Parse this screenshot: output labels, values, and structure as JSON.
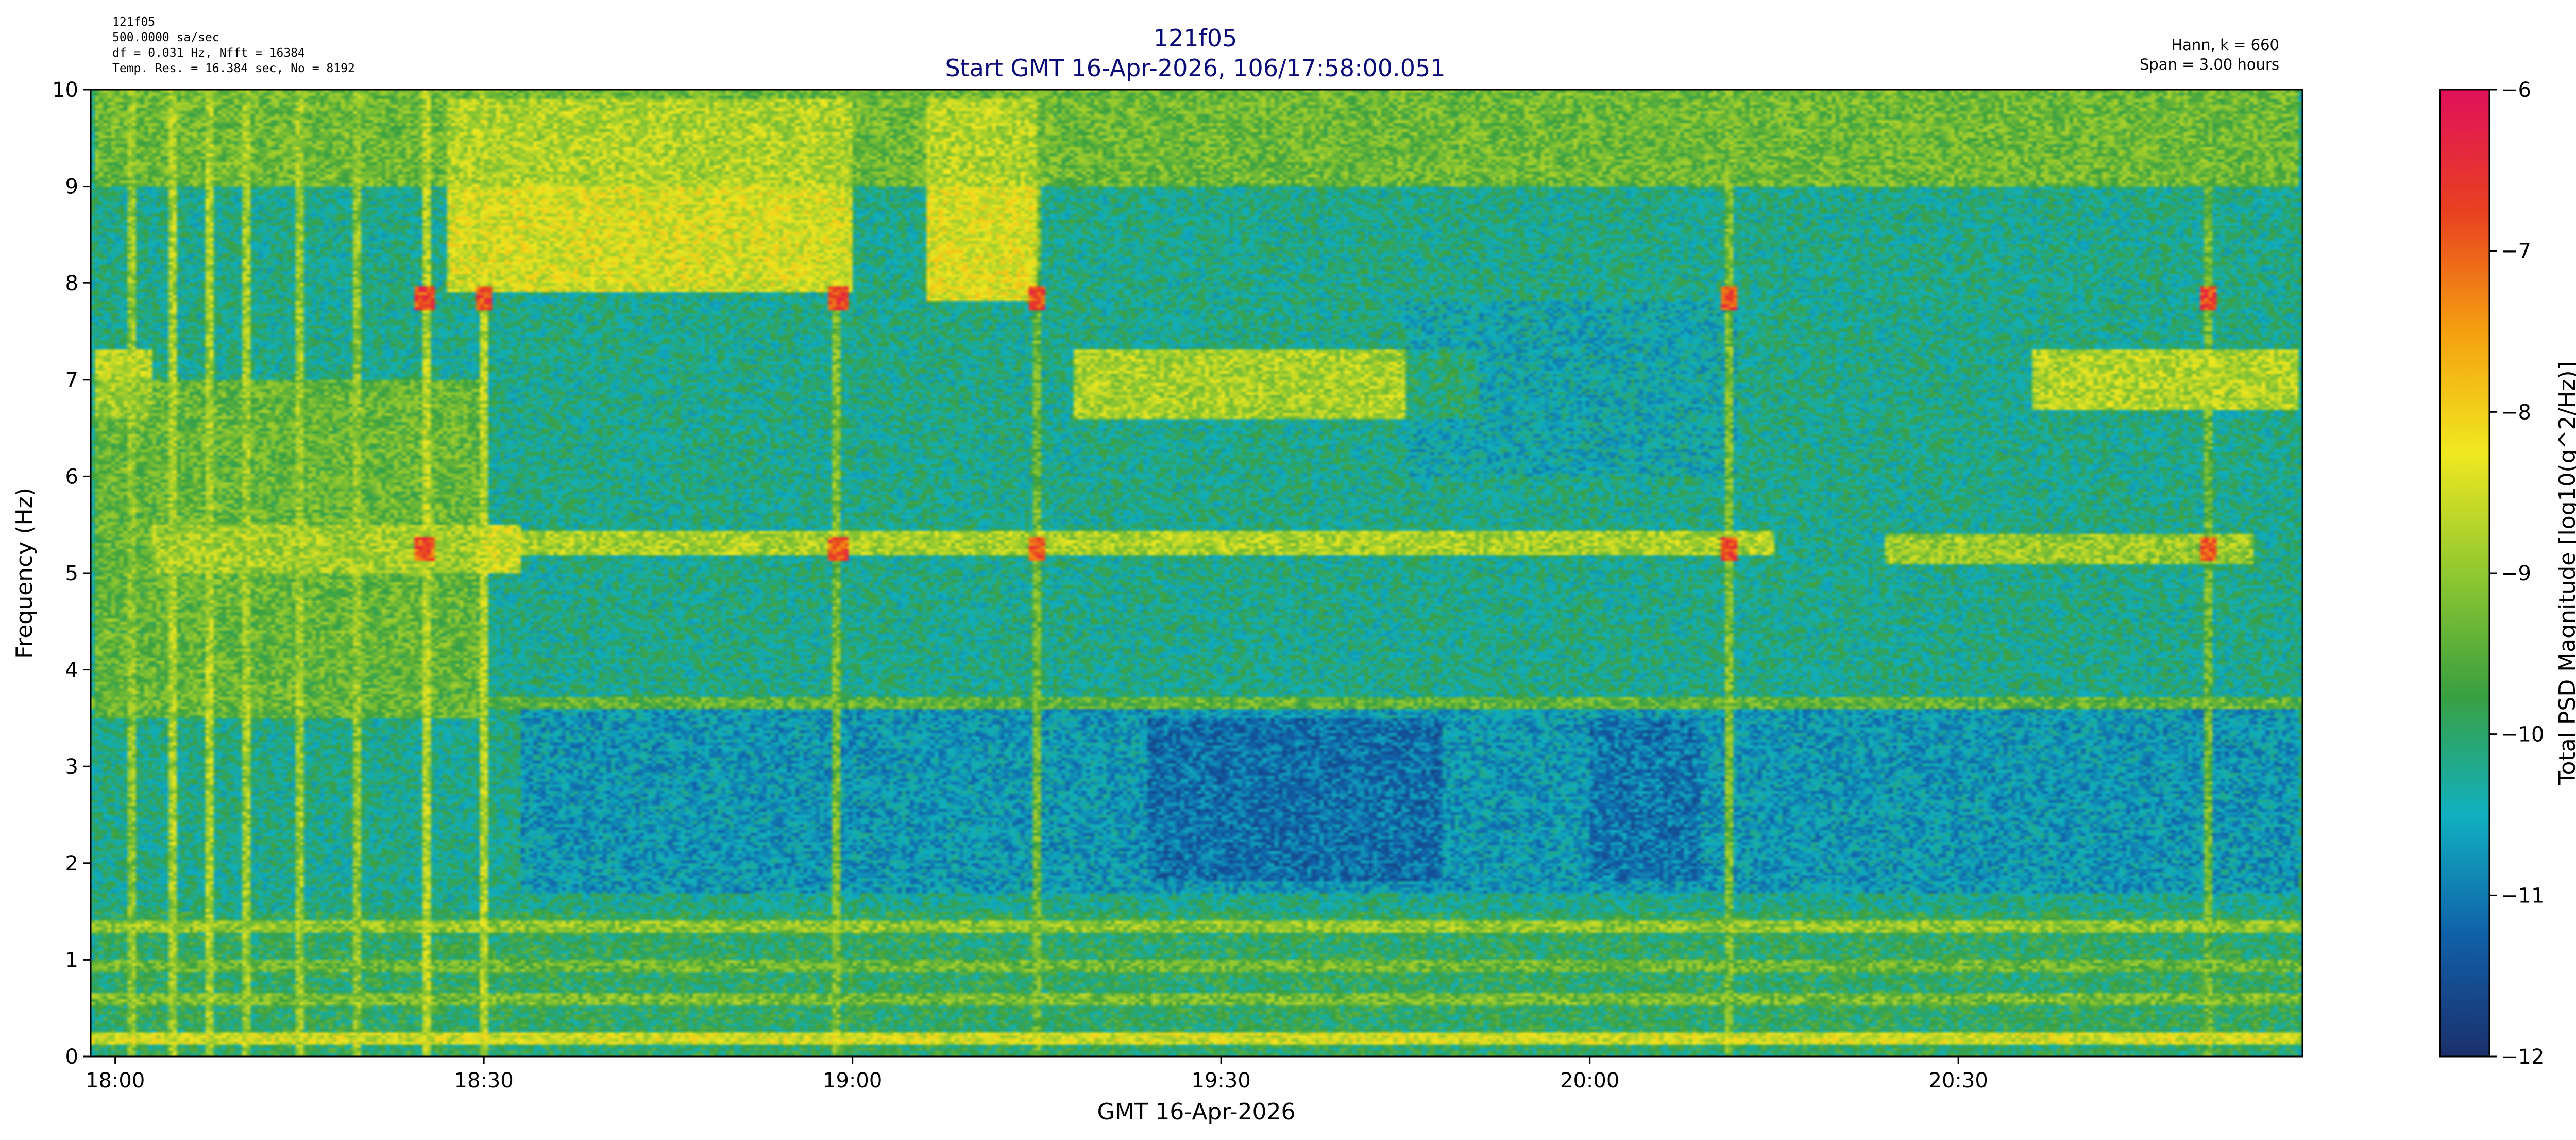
{
  "header": {
    "info_lines": [
      "121f05",
      "500.0000 sa/sec",
      "df = 0.031 Hz,  Nfft = 16384",
      "Temp. Res. = 16.384 sec, No = 8192"
    ],
    "right_lines": [
      "Hann, k = 660",
      "Span = 3.00 hours"
    ]
  },
  "chart_data": {
    "type": "heatmap",
    "title": "121f05",
    "subtitle": "Start GMT 16-Apr-2026, 106/17:58:00.051",
    "xlabel": "GMT 16-Apr-2026",
    "ylabel": "Frequency (Hz)",
    "colorbar_label": "Total PSD Magnitude [log10(g^2/Hz)]",
    "xlim_hours": [
      17.9667,
      20.9667
    ],
    "xticks": [
      {
        "value": 18.0,
        "label": "18:00"
      },
      {
        "value": 18.5,
        "label": "18:30"
      },
      {
        "value": 19.0,
        "label": "19:00"
      },
      {
        "value": 19.5,
        "label": "19:30"
      },
      {
        "value": 20.0,
        "label": "20:00"
      },
      {
        "value": 20.5,
        "label": "20:30"
      }
    ],
    "ylim": [
      0,
      10
    ],
    "yticks": [
      0,
      1,
      2,
      3,
      4,
      5,
      6,
      7,
      8,
      9,
      10
    ],
    "clim": [
      -12,
      -6
    ],
    "colorbar_ticks": [
      -12,
      -11,
      -10,
      -9,
      -8,
      -7,
      -6
    ],
    "colormap": [
      "#1b2f6b",
      "#1060a8",
      "#10b0c0",
      "#3aa040",
      "#90c830",
      "#f0e820",
      "#f5a010",
      "#e84020",
      "#e0105a"
    ],
    "background_level": -10.2,
    "features": [
      {
        "kind": "band",
        "t_start": 18.45,
        "t_end": 19.0,
        "f_start": 7.9,
        "f_end": 9.9,
        "level": -7.7
      },
      {
        "kind": "band",
        "t_start": 19.1,
        "t_end": 19.25,
        "f_start": 7.8,
        "f_end": 9.9,
        "level": -7.6
      },
      {
        "kind": "band",
        "t_start": 17.97,
        "t_end": 18.05,
        "f_start": 6.6,
        "f_end": 7.3,
        "level": -8.0
      },
      {
        "kind": "band",
        "t_start": 19.3,
        "t_end": 19.85,
        "f_start": 6.6,
        "f_end": 7.3,
        "level": -8.2
      },
      {
        "kind": "band",
        "t_start": 20.6,
        "t_end": 20.96,
        "f_start": 6.7,
        "f_end": 7.3,
        "level": -8.1
      },
      {
        "kind": "band",
        "t_start": 18.05,
        "t_end": 18.55,
        "f_start": 5.0,
        "f_end": 5.5,
        "level": -7.8
      },
      {
        "kind": "band",
        "t_start": 18.55,
        "t_end": 20.25,
        "f_start": 5.2,
        "f_end": 5.45,
        "level": -8.2
      },
      {
        "kind": "band",
        "t_start": 20.4,
        "t_end": 20.9,
        "f_start": 5.1,
        "f_end": 5.4,
        "level": -8.4
      },
      {
        "kind": "band",
        "t_start": 17.97,
        "t_end": 20.96,
        "f_start": 9.0,
        "f_end": 10.0,
        "level": -8.9
      },
      {
        "kind": "band",
        "t_start": 17.97,
        "t_end": 18.5,
        "f_start": 3.5,
        "f_end": 7.0,
        "level": -9.0
      },
      {
        "kind": "band",
        "t_start": 18.55,
        "t_end": 20.96,
        "f_start": 1.7,
        "f_end": 3.6,
        "level": -10.9
      },
      {
        "kind": "band",
        "t_start": 19.4,
        "t_end": 19.8,
        "f_start": 1.8,
        "f_end": 3.5,
        "level": -11.3
      },
      {
        "kind": "band",
        "t_start": 20.0,
        "t_end": 20.15,
        "f_start": 1.8,
        "f_end": 3.5,
        "level": -11.2
      },
      {
        "kind": "band",
        "t_start": 19.75,
        "t_end": 20.2,
        "f_start": 6.0,
        "f_end": 7.8,
        "level": -10.6
      },
      {
        "kind": "band",
        "t_start": 17.97,
        "t_end": 20.96,
        "f_start": 0.0,
        "f_end": 1.5,
        "level": -9.8
      },
      {
        "kind": "line",
        "f": 0.2,
        "level": -8.5
      },
      {
        "kind": "line",
        "f": 1.35,
        "level": -9.0
      },
      {
        "kind": "line",
        "f": 3.65,
        "level": -9.4
      },
      {
        "kind": "line",
        "f": 0.6,
        "level": -9.2
      },
      {
        "kind": "line",
        "f": 0.95,
        "level": -9.3
      },
      {
        "kind": "spot",
        "t": 18.42,
        "f": 7.85,
        "level": -6.8
      },
      {
        "kind": "spot",
        "t": 18.5,
        "f": 7.85,
        "level": -6.8
      },
      {
        "kind": "spot",
        "t": 18.98,
        "f": 7.85,
        "level": -6.8
      },
      {
        "kind": "spot",
        "t": 19.25,
        "f": 7.85,
        "level": -6.8
      },
      {
        "kind": "spot",
        "t": 20.19,
        "f": 7.85,
        "level": -6.8
      },
      {
        "kind": "spot",
        "t": 20.84,
        "f": 7.85,
        "level": -6.8
      },
      {
        "kind": "spot",
        "t": 18.42,
        "f": 5.25,
        "level": -6.9
      },
      {
        "kind": "spot",
        "t": 18.98,
        "f": 5.25,
        "level": -6.9
      },
      {
        "kind": "spot",
        "t": 19.25,
        "f": 5.25,
        "level": -6.9
      },
      {
        "kind": "spot",
        "t": 20.19,
        "f": 5.25,
        "level": -6.9
      },
      {
        "kind": "spot",
        "t": 20.84,
        "f": 5.25,
        "level": -6.9
      },
      {
        "kind": "streak",
        "t": 18.02,
        "level": -9.0
      },
      {
        "kind": "streak",
        "t": 18.08,
        "level": -8.8
      },
      {
        "kind": "streak",
        "t": 18.13,
        "level": -8.8
      },
      {
        "kind": "streak",
        "t": 18.18,
        "level": -8.9
      },
      {
        "kind": "streak",
        "t": 18.25,
        "level": -8.9
      },
      {
        "kind": "streak",
        "t": 18.33,
        "level": -9.0
      },
      {
        "kind": "streak",
        "t": 18.42,
        "level": -8.7
      },
      {
        "kind": "streak",
        "t": 18.5,
        "level": -8.7
      },
      {
        "kind": "streak",
        "t": 18.98,
        "level": -9.2
      },
      {
        "kind": "streak",
        "t": 19.25,
        "level": -9.3
      },
      {
        "kind": "streak",
        "t": 20.19,
        "level": -9.2
      },
      {
        "kind": "streak",
        "t": 20.84,
        "level": -9.3
      }
    ]
  }
}
